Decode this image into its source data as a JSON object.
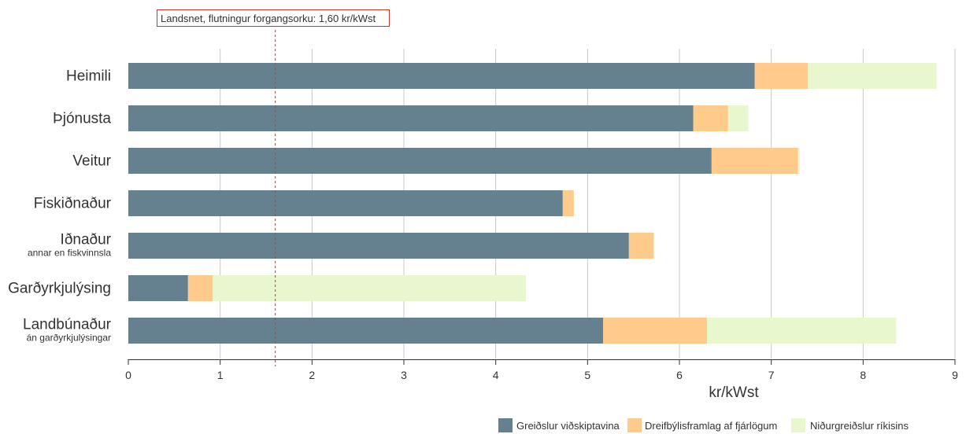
{
  "chart_data": {
    "type": "bar",
    "orientation": "horizontal",
    "stacked": true,
    "categories": [
      {
        "label": "Heimili",
        "sublabel": ""
      },
      {
        "label": "Þjónusta",
        "sublabel": ""
      },
      {
        "label": "Veitur",
        "sublabel": ""
      },
      {
        "label": "Fiskiðnaður",
        "sublabel": ""
      },
      {
        "label": "Iðnaður",
        "sublabel": "annar en fiskvinnsla"
      },
      {
        "label": "Garðyrkjulýsing",
        "sublabel": ""
      },
      {
        "label": "Landbúnaður",
        "sublabel": "án garðyrkjulýsingar"
      }
    ],
    "series": [
      {
        "name": "Greiðslur viðskiptavina",
        "color": "#65818f",
        "values": [
          6.82,
          6.15,
          6.35,
          4.73,
          5.45,
          0.65,
          5.17
        ]
      },
      {
        "name": "Dreifbýlisframlag af fjárlögum",
        "color": "#fecb8a",
        "values": [
          0.58,
          0.38,
          0.94,
          0.12,
          0.27,
          0.27,
          1.13
        ]
      },
      {
        "name": "Niðurgreiðslur ríkisins",
        "color": "#e9f7cf",
        "values": [
          1.4,
          0.22,
          0.02,
          0.0,
          0.01,
          3.41,
          2.06
        ]
      }
    ],
    "xlabel": "kr/kWst",
    "xlim": [
      0,
      9
    ],
    "xticks": [
      "0",
      "1",
      "2",
      "3",
      "4",
      "5",
      "6",
      "7",
      "8",
      "9"
    ],
    "grid": true,
    "legend_position": "bottom-right",
    "reference_line": {
      "value": 1.6,
      "color": "#c0392b",
      "label": "Landsnet, flutningur forgangsorku: 1,60 kr/kWst"
    }
  }
}
